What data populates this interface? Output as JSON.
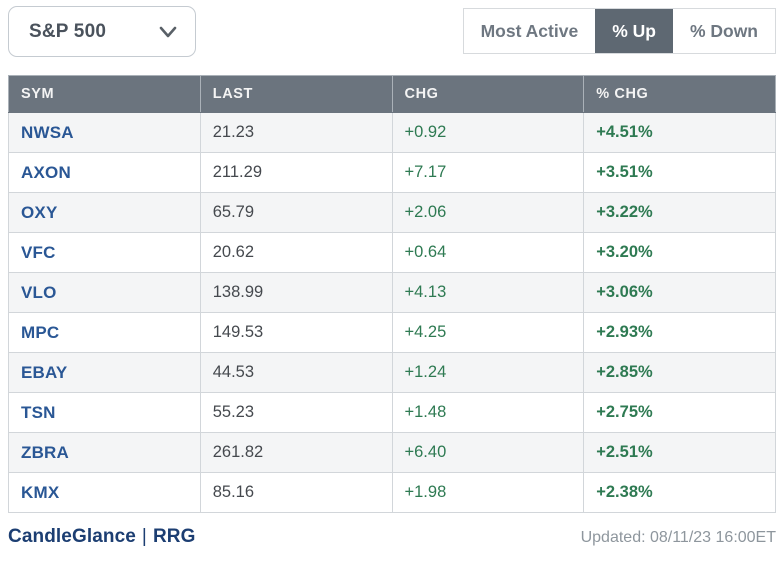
{
  "dropdown": {
    "selected": "S&P 500",
    "icon": "chevron-down-icon"
  },
  "filters": {
    "items": [
      {
        "label": "Most Active",
        "active": false
      },
      {
        "label": "% Up",
        "active": true
      },
      {
        "label": "% Down",
        "active": false
      }
    ]
  },
  "table": {
    "headers": [
      "SYM",
      "LAST",
      "CHG",
      "% CHG"
    ],
    "rows": [
      {
        "sym": "NWSA",
        "last": "21.23",
        "chg": "+0.92",
        "pct": "+4.51%"
      },
      {
        "sym": "AXON",
        "last": "211.29",
        "chg": "+7.17",
        "pct": "+3.51%"
      },
      {
        "sym": "OXY",
        "last": "65.79",
        "chg": "+2.06",
        "pct": "+3.22%"
      },
      {
        "sym": "VFC",
        "last": "20.62",
        "chg": "+0.64",
        "pct": "+3.20%"
      },
      {
        "sym": "VLO",
        "last": "138.99",
        "chg": "+4.13",
        "pct": "+3.06%"
      },
      {
        "sym": "MPC",
        "last": "149.53",
        "chg": "+4.25",
        "pct": "+2.93%"
      },
      {
        "sym": "EBAY",
        "last": "44.53",
        "chg": "+1.24",
        "pct": "+2.85%"
      },
      {
        "sym": "TSN",
        "last": "55.23",
        "chg": "+1.48",
        "pct": "+2.75%"
      },
      {
        "sym": "ZBRA",
        "last": "261.82",
        "chg": "+6.40",
        "pct": "+2.51%"
      },
      {
        "sym": "KMX",
        "last": "85.16",
        "chg": "+1.98",
        "pct": "+2.38%"
      }
    ]
  },
  "footer": {
    "links": [
      "CandleGlance",
      "RRG"
    ],
    "separator": "|",
    "updated": "Updated: 08/11/23 16:00ET"
  },
  "colors": {
    "header_bg": "#6b747e",
    "active_button_bg": "#5e6872",
    "positive_green": "#2e7a52",
    "symbol_blue": "#2a5795",
    "link_navy": "#1c3e72",
    "stripe": "#f4f5f6",
    "muted_text": "#8e969d"
  }
}
